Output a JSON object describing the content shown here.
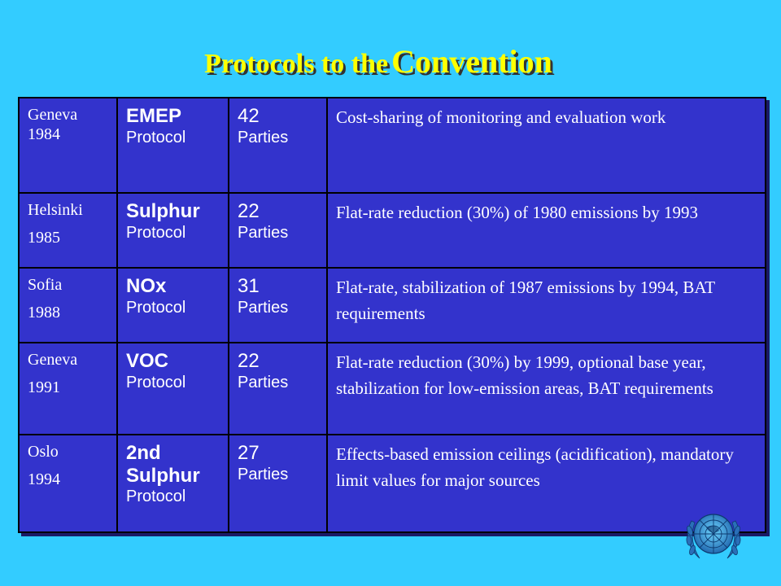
{
  "title": {
    "part1": "Protocols to the",
    "part2": "Convention"
  },
  "rows": [
    {
      "place": "Geneva",
      "year": "1984",
      "name": "EMEP",
      "type": "Protocol",
      "parties": "42",
      "parties_label": "Parties",
      "description": "Cost-sharing of monitoring and evaluation work"
    },
    {
      "place": "Helsinki",
      "year": "1985",
      "name": "Sulphur",
      "type": "Protocol",
      "parties": "22",
      "parties_label": "Parties",
      "description": "Flat-rate reduction (30%) of 1980 emissions by 1993"
    },
    {
      "place": "Sofia",
      "year": "1988",
      "name": "NOx",
      "type": "Protocol",
      "parties": "31",
      "parties_label": "Parties",
      "description": "Flat-rate, stabilization of 1987 emissions by 1994, BAT requirements"
    },
    {
      "place": "Geneva",
      "year": "1991",
      "name": "VOC",
      "type": "Protocol",
      "parties": "22",
      "parties_label": "Parties",
      "description": "Flat-rate reduction (30%) by 1999, optional base year, stabilization for low-emission areas, BAT requirements"
    },
    {
      "place": "Oslo",
      "year": "1994",
      "name": "2nd Sulphur",
      "type": "Protocol",
      "parties": "27",
      "parties_label": "Parties",
      "description": "Effects-based emission ceilings (acidification), mandatory limit values for major sources"
    }
  ],
  "colors": {
    "background": "#33ccff",
    "table": "#3333cc",
    "title": "#ffff00",
    "text": "#ffffff"
  },
  "logo": "un-emblem-icon"
}
